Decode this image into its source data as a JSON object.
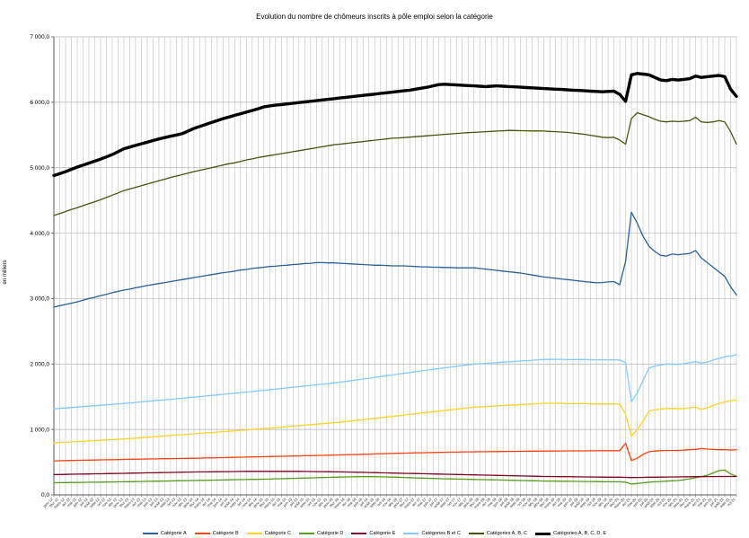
{
  "chart_data": {
    "type": "line",
    "title": "Evolution du nombre de chômeurs inscrits à pôle emploi selon la catégorie",
    "xlabel": "",
    "ylabel": "en milliers",
    "ylim": [
      0,
      7000
    ],
    "y_tick_step": 1000,
    "grid": {
      "vertical": true,
      "horizontal": true
    },
    "legend_position": "bottom",
    "y_tick_labels": [
      "0,0",
      "1 000,0",
      "2 000,0",
      "3 000,0",
      "4 000,0",
      "5 000,0",
      "6 000,0",
      "7 000,0"
    ],
    "x_labels": [
      "janv-12",
      "févr-12",
      "mars-12",
      "avr-12",
      "mai-12",
      "juin-12",
      "juil-12",
      "août-12",
      "sept-12",
      "oct-12",
      "nov-12",
      "déc-12",
      "janv-13",
      "févr-13",
      "mars-13",
      "avr-13",
      "mai-13",
      "juin-13",
      "juil-13",
      "août-13",
      "sept-13",
      "oct-13",
      "nov-13",
      "déc-13",
      "janv-14",
      "févr-14",
      "mars-14",
      "avr-14",
      "mai-14",
      "juin-14",
      "juil-14",
      "août-14",
      "sept-14",
      "oct-14",
      "nov-14",
      "déc-14",
      "janv-15",
      "févr-15",
      "mars-15",
      "avr-15",
      "mai-15",
      "juin-15",
      "juil-15",
      "août-15",
      "sept-15",
      "oct-15",
      "nov-15",
      "déc-15",
      "janv-16",
      "févr-16",
      "mars-16",
      "avr-16",
      "mai-16",
      "juin-16",
      "juil-16",
      "août-16",
      "sept-16",
      "oct-16",
      "nov-16",
      "déc-16",
      "janv-17",
      "févr-17",
      "mars-17",
      "avr-17",
      "mai-17",
      "juin-17",
      "juil-17",
      "août-17",
      "sept-17",
      "oct-17",
      "nov-17",
      "déc-17",
      "janv-18",
      "févr-18",
      "mars-18",
      "avr-18",
      "mai-18",
      "juin-18",
      "juil-18",
      "août-18",
      "sept-18",
      "oct-18",
      "nov-18",
      "déc-18",
      "janv-19",
      "févr-19",
      "mars-19",
      "avr-19",
      "mai-19",
      "juin-19",
      "juil-19",
      "août-19",
      "sept-19",
      "oct-19",
      "nov-19",
      "déc-19",
      "janv-20",
      "févr-20",
      "mars-20",
      "avr-20",
      "mai-20",
      "juin-20",
      "juil-20",
      "août-20",
      "sept-20",
      "oct-20",
      "nov-20",
      "déc-20",
      "janv-21",
      "févr-21",
      "mars-21",
      "avr-21",
      "mai-21",
      "juin-21",
      "juil-21",
      "août-21",
      "sept-21",
      "oct-21"
    ],
    "series": [
      {
        "name": "Catégorie A",
        "color": "#2a6099",
        "width": 1.3,
        "values": [
          2870,
          2890,
          2910,
          2930,
          2950,
          2975,
          3000,
          3020,
          3045,
          3065,
          3090,
          3110,
          3130,
          3145,
          3165,
          3180,
          3200,
          3215,
          3230,
          3245,
          3260,
          3275,
          3290,
          3305,
          3320,
          3335,
          3350,
          3365,
          3380,
          3395,
          3405,
          3420,
          3435,
          3445,
          3460,
          3470,
          3480,
          3490,
          3495,
          3505,
          3510,
          3520,
          3525,
          3535,
          3540,
          3550,
          3550,
          3545,
          3545,
          3540,
          3535,
          3530,
          3525,
          3520,
          3515,
          3510,
          3510,
          3505,
          3500,
          3500,
          3500,
          3495,
          3490,
          3485,
          3485,
          3480,
          3480,
          3475,
          3475,
          3470,
          3470,
          3470,
          3470,
          3460,
          3450,
          3440,
          3430,
          3420,
          3410,
          3400,
          3390,
          3375,
          3360,
          3345,
          3330,
          3320,
          3310,
          3300,
          3290,
          3280,
          3270,
          3260,
          3250,
          3240,
          3245,
          3255,
          3260,
          3210,
          3570,
          4320,
          4150,
          3950,
          3800,
          3720,
          3660,
          3650,
          3680,
          3670,
          3680,
          3690,
          3735,
          3620,
          3550,
          3480,
          3410,
          3340,
          3180,
          3055
        ]
      },
      {
        "name": "Catégorie B",
        "color": "#ff420e",
        "width": 1.3,
        "values": [
          520,
          522,
          524,
          526,
          528,
          530,
          531,
          533,
          535,
          537,
          538,
          540,
          542,
          543,
          545,
          547,
          548,
          550,
          551,
          553,
          554,
          556,
          557,
          559,
          560,
          562,
          564,
          566,
          568,
          570,
          572,
          574,
          576,
          578,
          580,
          582,
          584,
          586,
          588,
          590,
          592,
          594,
          596,
          598,
          600,
          602,
          604,
          606,
          608,
          611,
          613,
          616,
          618,
          621,
          623,
          626,
          628,
          631,
          633,
          636,
          638,
          640,
          642,
          644,
          646,
          648,
          650,
          651,
          653,
          654,
          656,
          657,
          658,
          659,
          660,
          661,
          662,
          663,
          664,
          665,
          666,
          667,
          668,
          669,
          670,
          670,
          671,
          671,
          672,
          672,
          673,
          673,
          674,
          674,
          675,
          675,
          675,
          675,
          790,
          525,
          560,
          620,
          660,
          670,
          675,
          680,
          680,
          680,
          685,
          690,
          695,
          710,
          700,
          695,
          690,
          690,
          685,
          690
        ]
      },
      {
        "name": "Catégorie C",
        "color": "#ffd320",
        "width": 1.3,
        "values": [
          795,
          800,
          805,
          810,
          815,
          820,
          825,
          830,
          835,
          840,
          845,
          850,
          855,
          862,
          868,
          875,
          881,
          888,
          894,
          901,
          907,
          914,
          920,
          927,
          933,
          940,
          947,
          953,
          960,
          967,
          973,
          980,
          987,
          993,
          1000,
          1007,
          1013,
          1020,
          1028,
          1035,
          1043,
          1050,
          1058,
          1065,
          1073,
          1080,
          1088,
          1095,
          1103,
          1110,
          1120,
          1130,
          1140,
          1150,
          1160,
          1170,
          1180,
          1190,
          1200,
          1210,
          1220,
          1230,
          1240,
          1250,
          1260,
          1270,
          1280,
          1290,
          1300,
          1310,
          1320,
          1330,
          1340,
          1345,
          1350,
          1355,
          1360,
          1365,
          1370,
          1375,
          1380,
          1385,
          1390,
          1395,
          1400,
          1400,
          1400,
          1400,
          1395,
          1395,
          1395,
          1395,
          1390,
          1390,
          1390,
          1390,
          1390,
          1385,
          1230,
          900,
          1000,
          1130,
          1280,
          1300,
          1310,
          1320,
          1320,
          1315,
          1320,
          1330,
          1340,
          1305,
          1330,
          1365,
          1395,
          1420,
          1440,
          1450
        ]
      },
      {
        "name": "Catégorie D",
        "color": "#579d1c",
        "width": 1.3,
        "values": [
          185,
          186,
          188,
          189,
          190,
          191,
          193,
          194,
          195,
          196,
          198,
          199,
          200,
          202,
          203,
          205,
          207,
          208,
          210,
          212,
          213,
          215,
          217,
          218,
          220,
          222,
          223,
          225,
          227,
          228,
          230,
          232,
          233,
          235,
          237,
          238,
          240,
          242,
          245,
          247,
          250,
          252,
          255,
          257,
          260,
          262,
          265,
          267,
          270,
          272,
          274,
          276,
          278,
          280,
          279,
          278,
          276,
          274,
          272,
          270,
          266,
          263,
          260,
          257,
          254,
          251,
          248,
          246,
          244,
          242,
          240,
          238,
          236,
          234,
          232,
          230,
          228,
          226,
          224,
          222,
          220,
          218,
          216,
          214,
          212,
          211,
          210,
          209,
          208,
          207,
          206,
          205,
          204,
          203,
          202,
          201,
          200,
          200,
          195,
          165,
          175,
          185,
          195,
          200,
          205,
          210,
          215,
          220,
          230,
          245,
          262,
          280,
          300,
          335,
          370,
          380,
          320,
          285
        ]
      },
      {
        "name": "Catégorie E",
        "color": "#7e0021",
        "width": 1.3,
        "values": [
          310,
          312,
          313,
          315,
          317,
          318,
          320,
          322,
          323,
          325,
          327,
          328,
          330,
          332,
          333,
          335,
          337,
          338,
          340,
          342,
          343,
          345,
          347,
          348,
          350,
          351,
          352,
          353,
          354,
          355,
          356,
          357,
          358,
          359,
          360,
          360,
          360,
          360,
          360,
          360,
          360,
          360,
          359,
          358,
          357,
          356,
          355,
          354,
          353,
          352,
          350,
          348,
          346,
          344,
          342,
          340,
          338,
          336,
          334,
          332,
          330,
          328,
          326,
          324,
          322,
          320,
          318,
          316,
          314,
          312,
          310,
          308,
          306,
          304,
          302,
          300,
          298,
          296,
          294,
          292,
          290,
          288,
          286,
          284,
          282,
          281,
          280,
          279,
          278,
          277,
          276,
          275,
          274,
          273,
          272,
          271,
          270,
          270,
          268,
          265,
          266,
          268,
          270,
          271,
          272,
          273,
          274,
          275,
          276,
          277,
          278,
          279,
          280,
          280,
          281,
          281,
          282,
          282
        ]
      },
      {
        "name": "Catégories B et C",
        "color": "#83caff",
        "width": 1.3,
        "values": [
          1315,
          1322,
          1329,
          1336,
          1343,
          1350,
          1356,
          1363,
          1370,
          1377,
          1383,
          1390,
          1397,
          1405,
          1413,
          1422,
          1429,
          1438,
          1445,
          1454,
          1461,
          1470,
          1477,
          1486,
          1493,
          1502,
          1511,
          1519,
          1528,
          1537,
          1545,
          1554,
          1563,
          1571,
          1580,
          1589,
          1597,
          1606,
          1616,
          1625,
          1635,
          1644,
          1654,
          1663,
          1673,
          1682,
          1692,
          1701,
          1711,
          1721,
          1733,
          1746,
          1758,
          1771,
          1783,
          1796,
          1808,
          1821,
          1833,
          1846,
          1858,
          1870,
          1882,
          1894,
          1906,
          1918,
          1930,
          1941,
          1953,
          1964,
          1976,
          1987,
          1998,
          2004,
          2010,
          2016,
          2022,
          2028,
          2034,
          2040,
          2046,
          2052,
          2058,
          2064,
          2070,
          2070,
          2071,
          2071,
          2067,
          2067,
          2068,
          2068,
          2064,
          2064,
          2065,
          2065,
          2065,
          2060,
          2020,
          1425,
          1560,
          1750,
          1940,
          1970,
          1985,
          2000,
          2000,
          1995,
          2005,
          2020,
          2035,
          2015,
          2030,
          2060,
          2085,
          2110,
          2125,
          2140
        ]
      },
      {
        "name": "Catégories A, B, C",
        "color": "#465410",
        "width": 1.3,
        "values": [
          4270,
          4300,
          4330,
          4360,
          4390,
          4420,
          4450,
          4480,
          4510,
          4545,
          4580,
          4615,
          4650,
          4675,
          4700,
          4725,
          4750,
          4775,
          4800,
          4825,
          4850,
          4872,
          4895,
          4917,
          4940,
          4960,
          4980,
          5000,
          5020,
          5040,
          5060,
          5075,
          5095,
          5120,
          5135,
          5155,
          5170,
          5185,
          5200,
          5215,
          5230,
          5245,
          5260,
          5275,
          5290,
          5305,
          5320,
          5335,
          5350,
          5360,
          5370,
          5380,
          5390,
          5400,
          5410,
          5420,
          5430,
          5440,
          5450,
          5455,
          5460,
          5467,
          5474,
          5481,
          5488,
          5495,
          5502,
          5509,
          5516,
          5523,
          5530,
          5535,
          5540,
          5545,
          5550,
          5555,
          5560,
          5565,
          5570,
          5568,
          5566,
          5564,
          5562,
          5561,
          5560,
          5555,
          5550,
          5545,
          5540,
          5530,
          5520,
          5510,
          5495,
          5480,
          5465,
          5460,
          5465,
          5420,
          5360,
          5750,
          5840,
          5810,
          5780,
          5740,
          5710,
          5700,
          5710,
          5705,
          5710,
          5720,
          5770,
          5700,
          5690,
          5700,
          5720,
          5700,
          5550,
          5360
        ]
      },
      {
        "name": "Catégories A, B, C, D, E",
        "color": "#000000",
        "width": 3.4,
        "values": [
          4880,
          4910,
          4940,
          4975,
          5010,
          5040,
          5070,
          5100,
          5130,
          5165,
          5200,
          5245,
          5290,
          5315,
          5340,
          5365,
          5390,
          5415,
          5440,
          5460,
          5480,
          5500,
          5520,
          5560,
          5600,
          5630,
          5660,
          5690,
          5720,
          5750,
          5775,
          5800,
          5825,
          5850,
          5875,
          5900,
          5930,
          5945,
          5955,
          5965,
          5975,
          5985,
          5995,
          6005,
          6015,
          6025,
          6035,
          6045,
          6055,
          6065,
          6075,
          6085,
          6095,
          6105,
          6115,
          6125,
          6135,
          6145,
          6155,
          6165,
          6175,
          6185,
          6200,
          6215,
          6230,
          6250,
          6270,
          6275,
          6270,
          6265,
          6260,
          6255,
          6250,
          6245,
          6240,
          6245,
          6250,
          6245,
          6240,
          6235,
          6230,
          6225,
          6220,
          6215,
          6210,
          6205,
          6200,
          6195,
          6190,
          6185,
          6180,
          6175,
          6170,
          6165,
          6160,
          6165,
          6170,
          6120,
          6015,
          6420,
          6440,
          6430,
          6420,
          6380,
          6340,
          6330,
          6350,
          6340,
          6350,
          6360,
          6400,
          6380,
          6390,
          6400,
          6410,
          6390,
          6200,
          6090
        ]
      }
    ]
  }
}
